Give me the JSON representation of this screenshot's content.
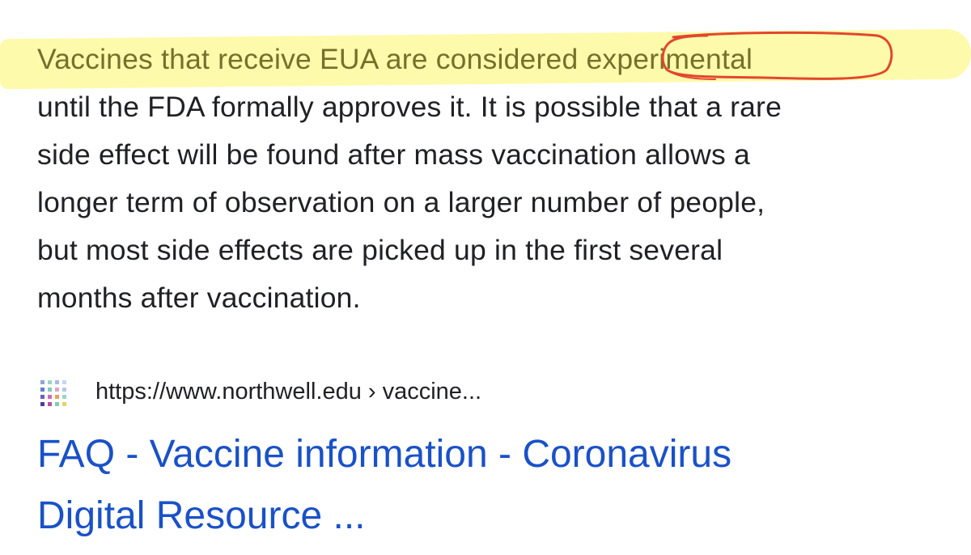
{
  "snippet": {
    "lines": [
      "Vaccines that receive EUA are considered experimental",
      "until the FDA formally approves it. It is possible that a rare",
      "side effect will be found after mass vaccination allows a",
      "longer term of observation on a larger number of people,",
      "but most side effects are picked up in the first several",
      "months after vaccination."
    ],
    "highlight_color": "#fdf88c",
    "annotation_color": "#e2462f"
  },
  "result": {
    "favicon": "northwell-dot-grid-icon",
    "url": "https://www.northwell.edu › vaccine...",
    "title_lines": [
      "FAQ - Vaccine information - Coronavirus",
      "Digital Resource ..."
    ],
    "title_color": "#1a51c8"
  }
}
